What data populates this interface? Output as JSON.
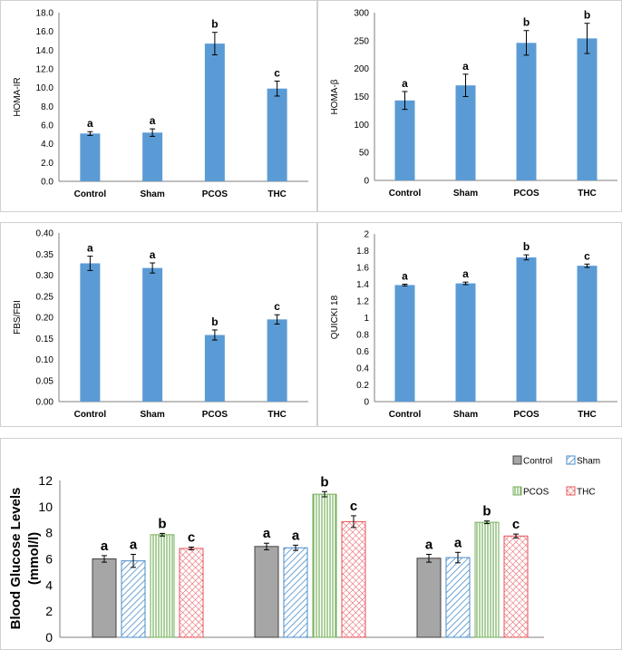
{
  "chart_data": [
    {
      "id": "homa-ir",
      "type": "bar",
      "categories": [
        "Control",
        "Sham",
        "PCOS",
        "THC"
      ],
      "values": [
        5.1,
        5.2,
        14.7,
        9.9
      ],
      "errors": [
        0.2,
        0.4,
        1.2,
        0.8
      ],
      "letters": [
        "a",
        "a",
        "b",
        "c"
      ],
      "ylabel": "HOMA-IR",
      "ylim": [
        0,
        18
      ],
      "yticks": [
        "0.0",
        "2.0",
        "4.0",
        "6.0",
        "8.0",
        "10.0",
        "12.0",
        "14.0",
        "16.0",
        "18.0"
      ],
      "color": "#5b9bd5"
    },
    {
      "id": "homa-beta",
      "type": "bar",
      "categories": [
        "Control",
        "Sham",
        "PCOS",
        "THC"
      ],
      "values": [
        143,
        170,
        246,
        254
      ],
      "errors": [
        16,
        20,
        22,
        27
      ],
      "letters": [
        "a",
        "a",
        "b",
        "b"
      ],
      "ylabel": "HOMA-β",
      "ylim": [
        0,
        300
      ],
      "yticks": [
        "0",
        "50",
        "100",
        "150",
        "200",
        "250",
        "300"
      ],
      "color": "#5b9bd5"
    },
    {
      "id": "fbs-fbi",
      "type": "bar",
      "categories": [
        "Control",
        "Sham",
        "PCOS",
        "THC"
      ],
      "values": [
        0.328,
        0.317,
        0.158,
        0.195
      ],
      "errors": [
        0.017,
        0.012,
        0.012,
        0.011
      ],
      "letters": [
        "a",
        "a",
        "b",
        "c"
      ],
      "ylabel": "FBS/FBI",
      "ylim": [
        0,
        0.4
      ],
      "yticks": [
        "0.00",
        "0.05",
        "0.10",
        "0.15",
        "0.20",
        "0.25",
        "0.30",
        "0.35",
        "0.40"
      ],
      "color": "#5b9bd5"
    },
    {
      "id": "quicki",
      "type": "bar",
      "categories": [
        "Control",
        "Sham",
        "PCOS",
        "THC"
      ],
      "values": [
        1.39,
        1.41,
        1.72,
        1.62
      ],
      "errors": [
        0.01,
        0.015,
        0.03,
        0.02
      ],
      "letters": [
        "a",
        "a",
        "b",
        "c"
      ],
      "ylabel": "QUICKI 18",
      "ylim": [
        0,
        2
      ],
      "yticks": [
        "0",
        "0.2",
        "0.4",
        "0.6",
        "0.8",
        "1",
        "1.2",
        "1.4",
        "1.6",
        "1.8",
        "2"
      ],
      "color": "#5b9bd5"
    },
    {
      "id": "blood-glucose",
      "type": "bar",
      "groups": [
        "",
        "",
        ""
      ],
      "ylabel_line1": "Blood Glucose Levels",
      "ylabel_line2": "(mmol/l)",
      "ylim": [
        0,
        12
      ],
      "yticks": [
        "0",
        "2",
        "4",
        "6",
        "8",
        "10",
        "12"
      ],
      "series": [
        {
          "name": "Control",
          "pattern": "solid",
          "color": "#a6a6a6",
          "values": [
            6.0,
            6.95,
            6.05
          ],
          "errors": [
            0.25,
            0.25,
            0.3
          ],
          "letters": [
            "a",
            "a",
            "a"
          ]
        },
        {
          "name": "Sham",
          "pattern": "diag",
          "color": "#4a8cc9",
          "values": [
            5.85,
            6.85,
            6.1
          ],
          "errors": [
            0.5,
            0.2,
            0.4
          ],
          "letters": [
            "a",
            "a",
            "a"
          ]
        },
        {
          "name": "PCOS",
          "pattern": "vert",
          "color": "#77b15c",
          "values": [
            7.85,
            10.95,
            8.8
          ],
          "errors": [
            0.1,
            0.2,
            0.1
          ],
          "letters": [
            "b",
            "b",
            "b"
          ]
        },
        {
          "name": "THC",
          "pattern": "grid",
          "color": "#e5545a",
          "values": [
            6.8,
            8.85,
            7.75
          ],
          "errors": [
            0.1,
            0.45,
            0.15
          ],
          "letters": [
            "c",
            "c",
            "c"
          ]
        }
      ]
    }
  ]
}
